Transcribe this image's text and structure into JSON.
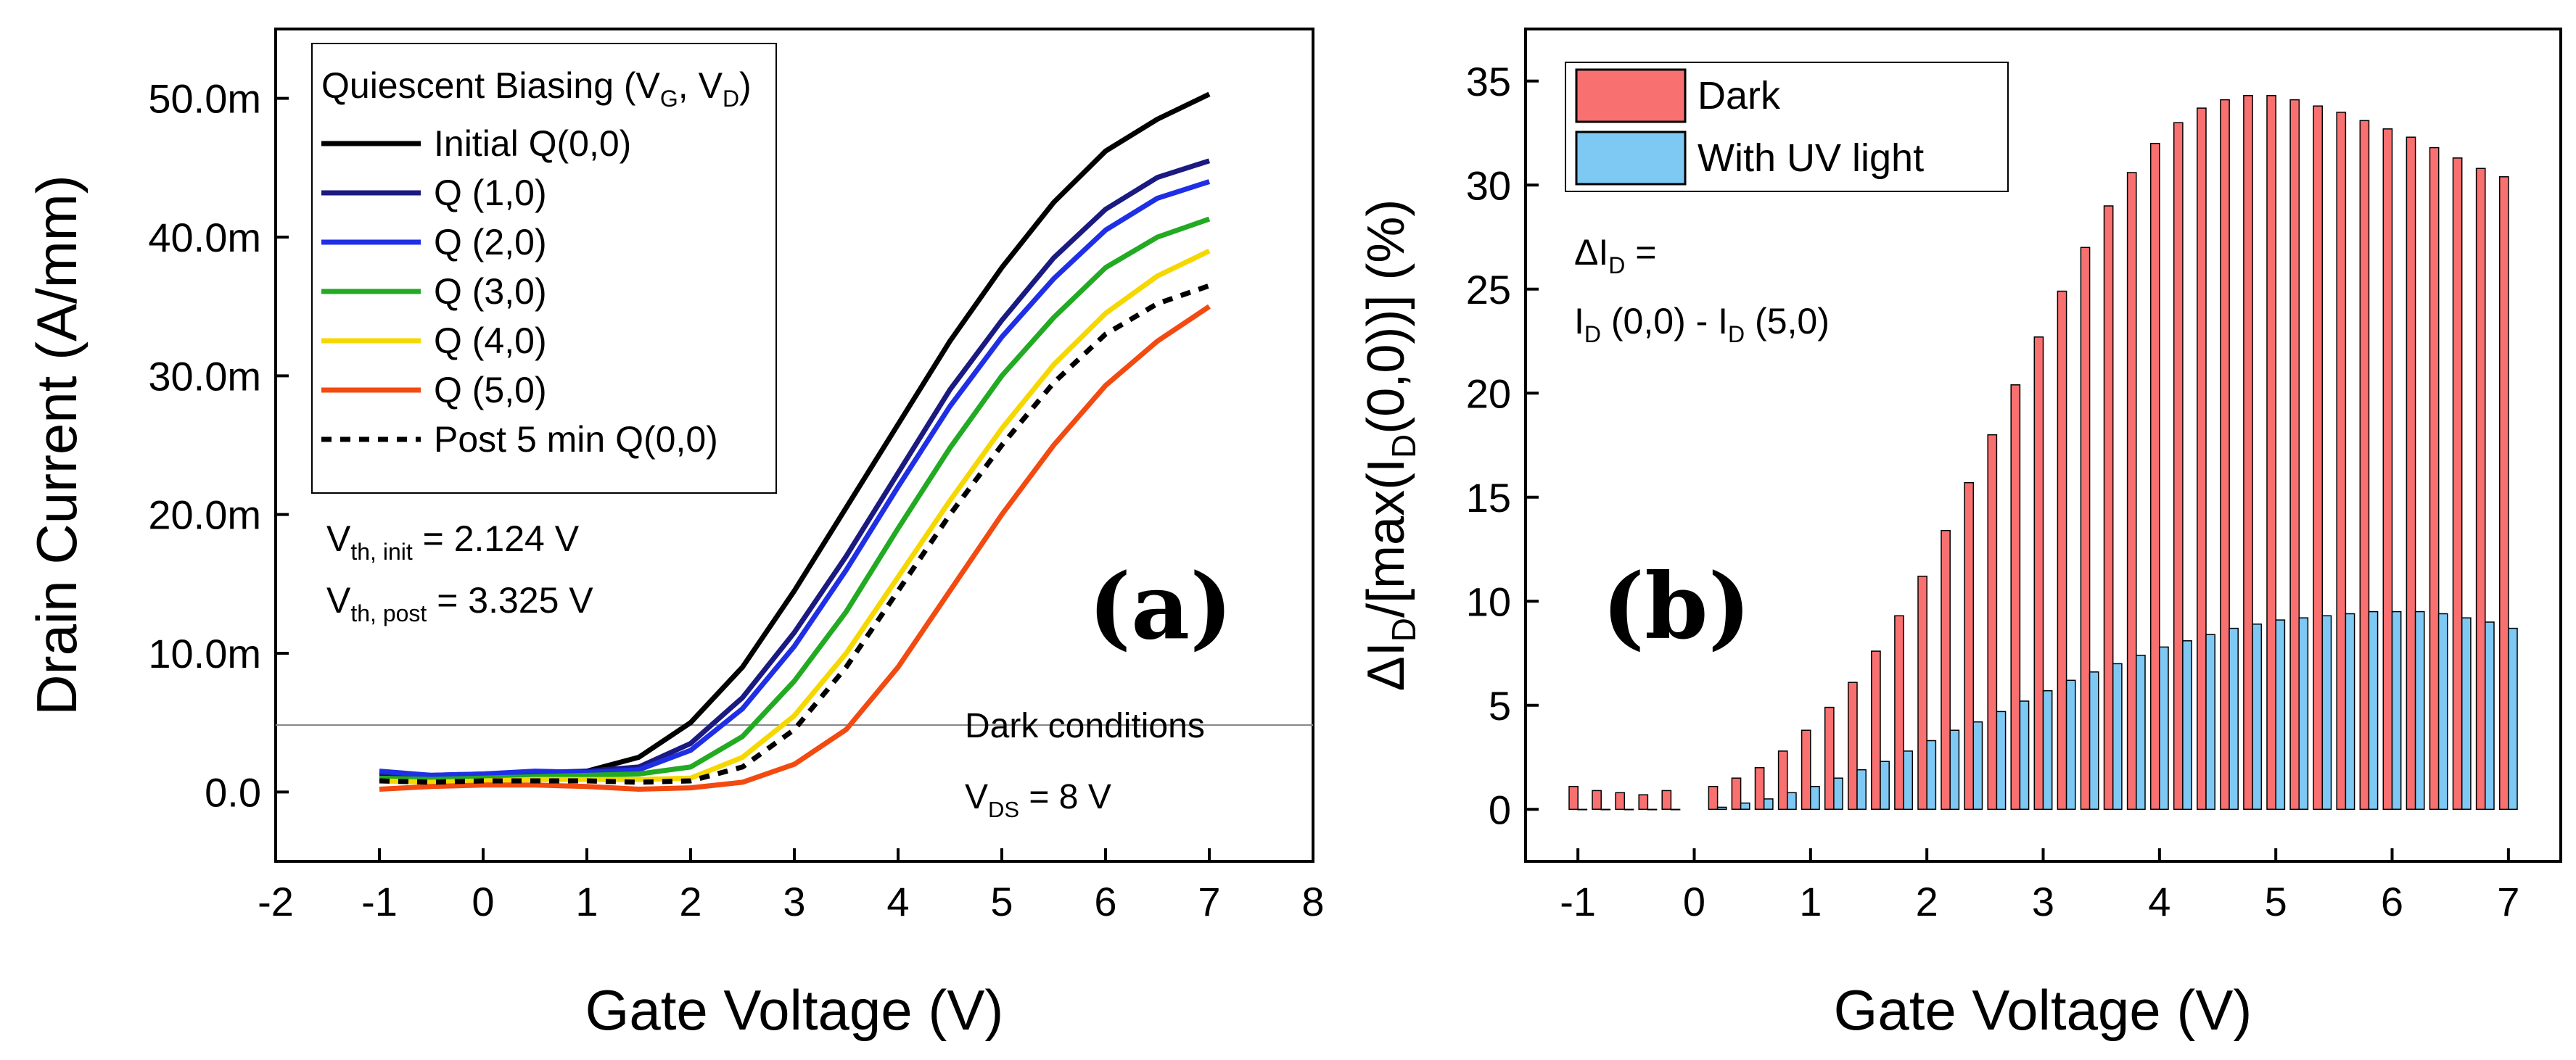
{
  "chart_data": [
    {
      "type": "line",
      "panel_label": "(a)",
      "xlabel": "Gate Voltage (V)",
      "ylabel": "Drain Current (A/mm)",
      "xlim": [
        -2,
        8
      ],
      "ylim": [
        -0.005,
        0.055
      ],
      "x_ticks": [
        -2,
        -1,
        0,
        1,
        2,
        3,
        4,
        5,
        6,
        7,
        8
      ],
      "x_tick_labels": [
        "-2",
        "-1",
        "0",
        "1",
        "2",
        "3",
        "4",
        "5",
        "6",
        "7",
        "8"
      ],
      "y_ticks": [
        0,
        0.01,
        0.02,
        0.03,
        0.04,
        0.05
      ],
      "y_tick_labels": [
        "0.0",
        "10.0m",
        "20.0m",
        "30.0m",
        "40.0m",
        "50.0m"
      ],
      "legend": {
        "title_main": "Quiescent Biasing (V",
        "title_sub1": "G",
        "title_mid": ", V",
        "title_sub2": "D",
        "title_end": ")",
        "placement": "top-left"
      },
      "x": [
        -1.0,
        -0.5,
        0.0,
        0.5,
        1.0,
        1.5,
        2.0,
        2.5,
        3.0,
        3.5,
        4.0,
        4.5,
        5.0,
        5.5,
        6.0,
        6.5,
        7.0
      ],
      "series": [
        {
          "name": "Initial Q(0,0)",
          "color": "#000000",
          "dash": "solid",
          "values": [
            0.0012,
            0.0011,
            0.0012,
            0.0013,
            0.0015,
            0.0025,
            0.005,
            0.009,
            0.0145,
            0.0205,
            0.0265,
            0.0325,
            0.0378,
            0.0425,
            0.0462,
            0.0485,
            0.0503
          ]
        },
        {
          "name": "Q (1,0)",
          "color": "#1a1a80",
          "dash": "solid",
          "values": [
            0.0014,
            0.0012,
            0.0013,
            0.0014,
            0.0015,
            0.0018,
            0.0035,
            0.0068,
            0.0115,
            0.017,
            0.023,
            0.029,
            0.034,
            0.0385,
            0.042,
            0.0443,
            0.0455
          ]
        },
        {
          "name": "Q (2,0)",
          "color": "#1f2fe6",
          "dash": "solid",
          "values": [
            0.0015,
            0.0012,
            0.0013,
            0.0015,
            0.0014,
            0.0016,
            0.003,
            0.006,
            0.0105,
            0.016,
            0.022,
            0.0278,
            0.0328,
            0.037,
            0.0405,
            0.0428,
            0.044
          ]
        },
        {
          "name": "Q (3,0)",
          "color": "#22aa22",
          "dash": "solid",
          "values": [
            0.001,
            0.0009,
            0.001,
            0.0011,
            0.0012,
            0.0013,
            0.0018,
            0.004,
            0.008,
            0.013,
            0.019,
            0.0248,
            0.03,
            0.0342,
            0.0378,
            0.04,
            0.0413
          ]
        },
        {
          "name": "Q (4,0)",
          "color": "#f5d800",
          "dash": "solid",
          "values": [
            0.0008,
            0.0007,
            0.0008,
            0.0009,
            0.0009,
            0.0009,
            0.001,
            0.0025,
            0.0055,
            0.01,
            0.0155,
            0.021,
            0.0262,
            0.0308,
            0.0345,
            0.0372,
            0.039
          ]
        },
        {
          "name": "Q (5,0)",
          "color": "#f24a10",
          "dash": "solid",
          "values": [
            0.0002,
            0.0004,
            0.0005,
            0.0005,
            0.0004,
            0.0002,
            0.0003,
            0.0007,
            0.002,
            0.0045,
            0.009,
            0.0145,
            0.02,
            0.025,
            0.0293,
            0.0325,
            0.035
          ]
        },
        {
          "name": "Post 5 min Q(0,0)",
          "color": "#000000",
          "dash": "dashed",
          "values": [
            0.0008,
            0.0007,
            0.0008,
            0.0008,
            0.0008,
            0.0007,
            0.0008,
            0.0018,
            0.0045,
            0.009,
            0.0145,
            0.02,
            0.025,
            0.0295,
            0.033,
            0.0352,
            0.0365
          ]
        }
      ],
      "reference_line": {
        "y": 0.005,
        "label": "Dark conditions"
      },
      "annotations": {
        "vth_init_prefix": "V",
        "vth_init_sub": "th, init",
        "vth_init_value": " = 2.124 V",
        "vth_post_prefix": "V",
        "vth_post_sub": "th, post",
        "vth_post_value": " = 3.325 V",
        "vds_prefix": "V",
        "vds_sub": "DS",
        "vds_value": " = 8 V"
      }
    },
    {
      "type": "bar",
      "panel_label": "(b)",
      "xlabel": "Gate Voltage (V)",
      "ylabel_parts": [
        "ΔI",
        "D",
        "/[max(I",
        "D",
        "(0,0))] (%)"
      ],
      "xlim": [
        -1.45,
        7.45
      ],
      "ylim": [
        -2.5,
        37.5
      ],
      "x_ticks": [
        -1,
        0,
        1,
        2,
        3,
        4,
        5,
        6,
        7
      ],
      "x_tick_labels": [
        "-1",
        "0",
        "1",
        "2",
        "3",
        "4",
        "5",
        "6",
        "7"
      ],
      "y_ticks": [
        0,
        5,
        10,
        15,
        20,
        25,
        30,
        35
      ],
      "y_tick_labels": [
        "0",
        "5",
        "10",
        "15",
        "20",
        "25",
        "30",
        "35"
      ],
      "legend": {
        "placement": "top-left"
      },
      "x": [
        -1.0,
        -0.8,
        -0.6,
        -0.4,
        -0.2,
        0.2,
        0.4,
        0.6,
        0.8,
        1.0,
        1.2,
        1.4,
        1.6,
        1.8,
        2.0,
        2.2,
        2.4,
        2.6,
        2.8,
        3.0,
        3.2,
        3.4,
        3.6,
        3.8,
        4.0,
        4.2,
        4.4,
        4.6,
        4.8,
        5.0,
        5.2,
        5.4,
        5.6,
        5.8,
        6.0,
        6.2,
        6.4,
        6.6,
        6.8,
        7.0
      ],
      "series": [
        {
          "name": "Dark",
          "color": "#f87070",
          "values": [
            1.1,
            0.9,
            0.8,
            0.7,
            0.9,
            1.1,
            1.5,
            2.0,
            2.8,
            3.8,
            4.9,
            6.1,
            7.6,
            9.3,
            11.2,
            13.4,
            15.7,
            18.0,
            20.4,
            22.7,
            24.9,
            27.0,
            29.0,
            30.6,
            32.0,
            33.0,
            33.7,
            34.1,
            34.3,
            34.3,
            34.1,
            33.8,
            33.5,
            33.1,
            32.7,
            32.3,
            31.8,
            31.3,
            30.8,
            30.4
          ]
        },
        {
          "name": "With UV light",
          "color": "#7ec8f4",
          "values": [
            0.0,
            0.0,
            0.0,
            0.0,
            0.0,
            0.1,
            0.3,
            0.5,
            0.8,
            1.1,
            1.5,
            1.9,
            2.3,
            2.8,
            3.3,
            3.8,
            4.2,
            4.7,
            5.2,
            5.7,
            6.2,
            6.6,
            7.0,
            7.4,
            7.8,
            8.1,
            8.4,
            8.7,
            8.9,
            9.1,
            9.2,
            9.3,
            9.4,
            9.5,
            9.5,
            9.5,
            9.4,
            9.2,
            9.0,
            8.7
          ]
        }
      ],
      "annotations": {
        "delta_line1_prefix": "ΔI",
        "delta_line1_sub": "D",
        "delta_line1_end": " =",
        "delta_line2_a": "I",
        "delta_line2_a_sub": "D",
        "delta_line2_mid": " (0,0) - I",
        "delta_line2_b_sub": "D",
        "delta_line2_end": " (5,0)"
      }
    }
  ]
}
